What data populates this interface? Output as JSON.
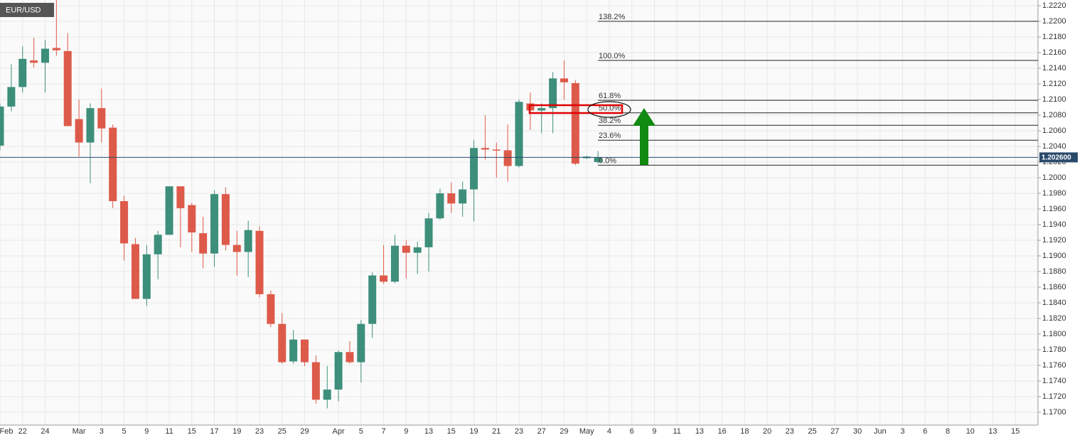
{
  "chart_data": {
    "type": "candlestick",
    "title": "EUR/USD",
    "categories": [
      "Feb",
      null,
      "22",
      null,
      "24",
      null,
      null,
      "Mar",
      null,
      "3",
      null,
      "5",
      null,
      "9",
      null,
      "11",
      null,
      "15",
      null,
      "17",
      null,
      "19",
      null,
      "23",
      null,
      "25",
      null,
      "29",
      null,
      null,
      "Apr",
      null,
      "5",
      null,
      "7",
      null,
      "9",
      null,
      "13",
      null,
      "15",
      null,
      "19",
      null,
      "21",
      null,
      "23",
      null,
      "27",
      null,
      "29",
      null,
      "May",
      null,
      "4",
      null,
      "6",
      null,
      "9",
      null,
      "11",
      null,
      "13",
      null,
      "16",
      null,
      "18",
      null,
      "20",
      null,
      "23",
      null,
      "25",
      null,
      "27",
      null,
      "30",
      null,
      "Jun",
      null,
      "3",
      null,
      "6",
      null,
      "8",
      null,
      "10",
      null,
      "13",
      null,
      "15",
      null
    ],
    "open": [
      1.2041,
      1.2091,
      1.2116,
      1.215,
      1.2147,
      1.2166,
      1.2162,
      1.2075,
      1.2045,
      1.2089,
      1.2064,
      1.197,
      1.1915,
      1.1845,
      1.1902,
      1.1927,
      1.1989,
      1.1965,
      1.1929,
      1.1903,
      1.1979,
      1.1914,
      1.1905,
      1.1932,
      1.1851,
      1.1813,
      1.1765,
      1.1793,
      1.1764,
      1.1716,
      1.1729,
      1.1777,
      1.1764,
      1.1813,
      1.1875,
      1.1867,
      1.1913,
      1.1904,
      1.1911,
      1.1948,
      1.198,
      1.1967,
      1.1985,
      1.2038,
      1.2036,
      1.2035,
      1.2015,
      1.2095,
      1.2086,
      1.2089,
      1.2127,
      1.2121,
      1.2025,
      1.202,
      null,
      null,
      null,
      null,
      null,
      null,
      null,
      null,
      null,
      null,
      null,
      null,
      null,
      null,
      null,
      null,
      null,
      null,
      null,
      null,
      null,
      null,
      null,
      null,
      null,
      null,
      null,
      null,
      null,
      null,
      null,
      null,
      null,
      null,
      null,
      null,
      null,
      null
    ],
    "high": [
      1.2095,
      1.2145,
      1.2168,
      1.2179,
      1.2176,
      1.2235,
      1.2185,
      1.21,
      1.2095,
      1.2114,
      1.2068,
      1.1977,
      1.1923,
      1.1914,
      1.1932,
      1.1989,
      1.1989,
      1.1968,
      1.195,
      1.1984,
      1.1988,
      1.1932,
      1.1945,
      1.1938,
      1.1856,
      1.1827,
      1.1805,
      1.1793,
      1.1773,
      1.1759,
      1.1779,
      1.1791,
      1.1818,
      1.1879,
      1.1914,
      1.1927,
      1.192,
      1.1918,
      1.1955,
      1.1986,
      1.1994,
      1.1995,
      1.2048,
      1.208,
      1.2045,
      1.2068,
      1.21,
      1.2109,
      1.2095,
      1.2135,
      1.215,
      1.2125,
      1.2028,
      1.2034,
      null,
      null,
      null,
      null,
      null,
      null,
      null,
      null,
      null,
      null,
      null,
      null,
      null,
      null,
      null,
      null,
      null,
      null,
      null,
      null,
      null,
      null,
      null,
      null,
      null,
      null,
      null,
      null,
      null,
      null,
      null,
      null,
      null,
      null,
      null,
      null,
      null,
      null
    ],
    "low": [
      1.2035,
      1.2085,
      1.2109,
      1.2141,
      1.2109,
      1.2156,
      1.2066,
      1.2027,
      1.1993,
      1.2045,
      1.1961,
      1.1894,
      1.1845,
      1.1836,
      1.187,
      1.1927,
      1.1911,
      1.1905,
      1.1884,
      1.1886,
      1.1907,
      1.1875,
      1.1873,
      1.1847,
      1.1809,
      1.1762,
      1.1762,
      1.1759,
      1.1711,
      1.1705,
      1.1714,
      1.1762,
      1.1738,
      1.1795,
      1.1864,
      1.1865,
      1.1871,
      1.1877,
      1.188,
      1.1946,
      1.1955,
      1.195,
      1.1944,
      1.2023,
      1.2,
      1.1995,
      1.2013,
      1.2061,
      1.2057,
      1.2057,
      1.21,
      1.2016,
      1.2024,
      1.2018,
      null,
      null,
      null,
      null,
      null,
      null,
      null,
      null,
      null,
      null,
      null,
      null,
      null,
      null,
      null,
      null,
      null,
      null,
      null,
      null,
      null,
      null,
      null,
      null,
      null,
      null,
      null,
      null,
      null,
      null,
      null,
      null,
      null,
      null,
      null,
      null,
      null,
      null
    ],
    "close": [
      1.2091,
      1.2116,
      1.2152,
      1.2147,
      1.2165,
      1.2163,
      1.2066,
      1.2045,
      1.2089,
      1.2063,
      1.197,
      1.1916,
      1.1845,
      1.1902,
      1.1927,
      1.1989,
      1.1961,
      1.193,
      1.1903,
      1.1979,
      1.1914,
      1.1905,
      1.1933,
      1.1851,
      1.1813,
      1.1764,
      1.1793,
      1.1764,
      1.1716,
      1.1729,
      1.1777,
      1.1764,
      1.1813,
      1.1875,
      1.1867,
      1.1913,
      1.1904,
      1.1911,
      1.1948,
      1.198,
      1.1967,
      1.1985,
      1.2038,
      1.2036,
      1.2035,
      1.2015,
      1.2097,
      1.2086,
      1.2089,
      1.2127,
      1.2122,
      1.2018,
      1.2027,
      1.2026,
      null,
      null,
      null,
      null,
      null,
      null,
      null,
      null,
      null,
      null,
      null,
      null,
      null,
      null,
      null,
      null,
      null,
      null,
      null,
      null,
      null,
      null,
      null,
      null,
      null,
      null,
      null,
      null,
      null,
      null,
      null,
      null,
      null,
      null,
      null,
      null,
      null,
      null
    ],
    "up_color": "#3d8f7b",
    "down_color": "#dd5a4a",
    "ylim": [
      1.16836,
      1.22273
    ],
    "yticks": [
      {
        "value": 1.17,
        "label": "1.1700"
      },
      {
        "value": 1.172,
        "label": "1.1720"
      },
      {
        "value": 1.174,
        "label": "1.1740"
      },
      {
        "value": 1.176,
        "label": "1.1760"
      },
      {
        "value": 1.178,
        "label": "1.1780"
      },
      {
        "value": 1.18,
        "label": "1.1800"
      },
      {
        "value": 1.182,
        "label": "1.1820"
      },
      {
        "value": 1.184,
        "label": "1.1840"
      },
      {
        "value": 1.186,
        "label": "1.1860"
      },
      {
        "value": 1.188,
        "label": "1.1880"
      },
      {
        "value": 1.19,
        "label": "1.1900"
      },
      {
        "value": 1.192,
        "label": "1.1920"
      },
      {
        "value": 1.194,
        "label": "1.1940"
      },
      {
        "value": 1.196,
        "label": "1.1960"
      },
      {
        "value": 1.198,
        "label": "1.1980"
      },
      {
        "value": 1.2,
        "label": "1.2000"
      },
      {
        "value": 1.202,
        "label": "1.2020"
      },
      {
        "value": 1.204,
        "label": "1.2040"
      },
      {
        "value": 1.206,
        "label": "1.2060"
      },
      {
        "value": 1.208,
        "label": "1.2080"
      },
      {
        "value": 1.21,
        "label": "1.2100"
      },
      {
        "value": 1.212,
        "label": "1.2120"
      },
      {
        "value": 1.214,
        "label": "1.2140"
      },
      {
        "value": 1.216,
        "label": "1.2160"
      },
      {
        "value": 1.218,
        "label": "1.2180"
      },
      {
        "value": 1.22,
        "label": "1.2200"
      },
      {
        "value": 1.222,
        "label": "1.2220"
      }
    ],
    "grid": true,
    "last_price": {
      "value": 1.2026,
      "label": "1.202600"
    },
    "fib_levels": [
      {
        "label": "138.2%",
        "value": 1.22
      },
      {
        "label": "100.0%",
        "value": 1.215
      },
      {
        "label": "61.8%",
        "value": 1.2099
      },
      {
        "label": "50.0%",
        "value": 1.2083
      },
      {
        "label": "38.2%",
        "value": 1.2067
      },
      {
        "label": "23.6%",
        "value": 1.2048
      },
      {
        "label": "0.0%",
        "value": 1.2016
      }
    ]
  }
}
